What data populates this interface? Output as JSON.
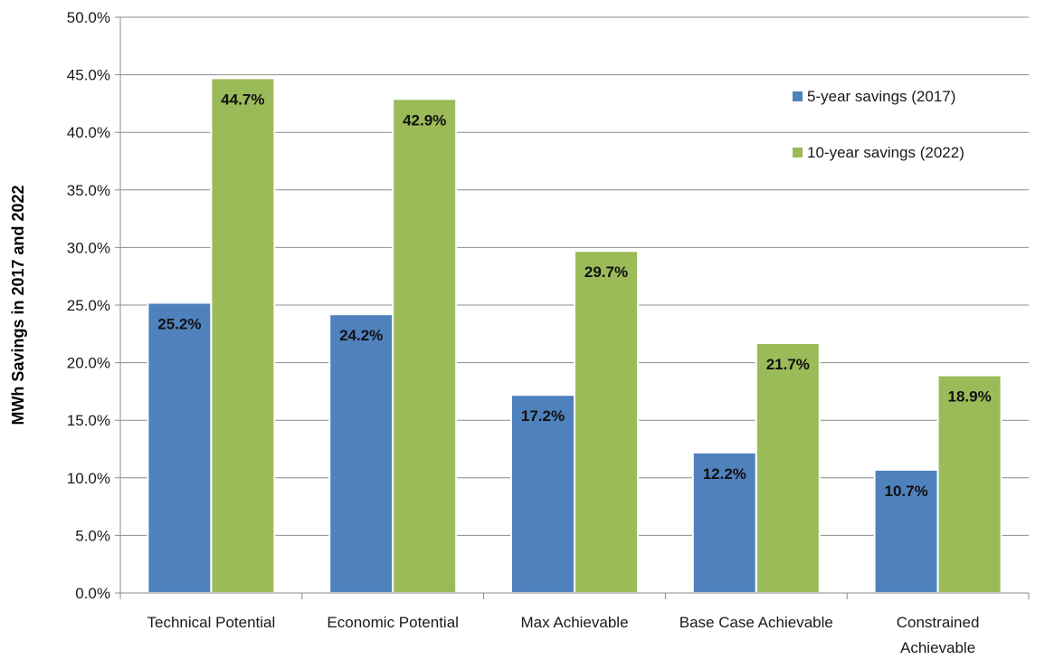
{
  "chart_data": {
    "type": "bar",
    "title": "",
    "xlabel": "",
    "ylabel": "MWh Savings in 2017 and 2022",
    "ylim": [
      0,
      50
    ],
    "ytick_step": 5,
    "ytick_labels": [
      "0.0%",
      "5.0%",
      "10.0%",
      "15.0%",
      "20.0%",
      "25.0%",
      "30.0%",
      "35.0%",
      "40.0%",
      "45.0%",
      "50.0%"
    ],
    "grid": true,
    "legend_position": "top-right",
    "categories": [
      [
        "Technical Potential"
      ],
      [
        "Economic Potential"
      ],
      [
        "Max Achievable"
      ],
      [
        "Base Case Achievable"
      ],
      [
        "Constrained",
        "Achievable"
      ]
    ],
    "series": [
      {
        "name": "5-year savings (2017)",
        "color": "#4F81BD",
        "values": [
          25.2,
          24.2,
          17.2,
          12.2,
          10.7
        ],
        "labels": [
          "25.2%",
          "24.2%",
          "17.2%",
          "12.2%",
          "10.7%"
        ]
      },
      {
        "name": "10-year savings (2022)",
        "color": "#9BBB59",
        "values": [
          44.7,
          42.9,
          29.7,
          21.7,
          18.9
        ],
        "labels": [
          "44.7%",
          "42.9%",
          "29.7%",
          "21.7%",
          "18.9%"
        ]
      }
    ],
    "colors": {
      "grid": "#8c8c8c",
      "axis": "#8c8c8c"
    }
  }
}
